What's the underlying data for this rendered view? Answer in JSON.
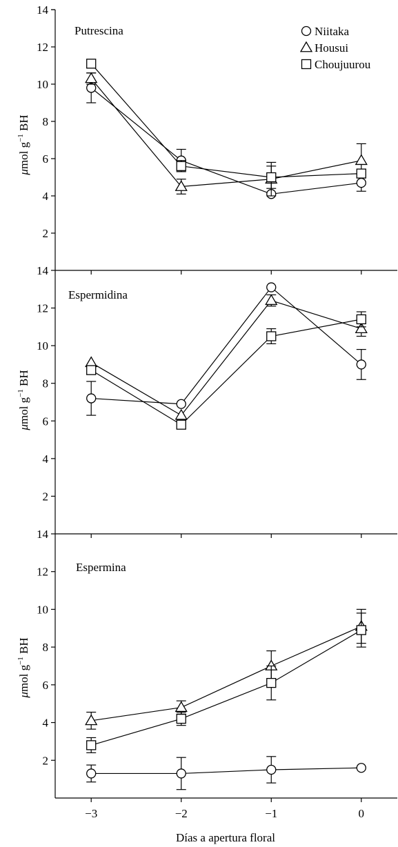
{
  "figure": {
    "xlabel": "Días a apertura floral"
  },
  "legend": {
    "placement": "top-right of first panel",
    "entries": [
      {
        "label": "Niitaka",
        "marker": "circle"
      },
      {
        "label": "Housui",
        "marker": "triangle"
      },
      {
        "label": "Choujuurou",
        "marker": "square"
      }
    ]
  },
  "chart_data": [
    {
      "type": "line",
      "title": "Putrescina",
      "ylabel": "μmol g⁻¹ BH",
      "ylabel_parts": {
        "mu": "μ",
        "main": "mol g",
        "sup": "−1",
        "suffix": " BH"
      },
      "xlim": [
        -3.4,
        0.4
      ],
      "ylim": [
        0,
        14
      ],
      "yticks": [
        2,
        4,
        6,
        8,
        10,
        12,
        14
      ],
      "ytick_labels": [
        "2",
        "4",
        "6",
        "8",
        "10",
        "12",
        "14"
      ],
      "x": [
        -3,
        -2,
        -1,
        0
      ],
      "series": [
        {
          "name": "Niitaka",
          "marker": "circle",
          "values": [
            9.8,
            5.9,
            4.1,
            4.7
          ],
          "errors": [
            0.8,
            0.6,
            0,
            0.45
          ]
        },
        {
          "name": "Housui",
          "marker": "triangle",
          "values": [
            10.3,
            4.5,
            4.9,
            5.9
          ],
          "errors": [
            0.3,
            0.4,
            0.9,
            0.9
          ]
        },
        {
          "name": "Choujuurou",
          "marker": "square",
          "values": [
            11.1,
            5.6,
            5.0,
            5.2
          ],
          "errors": [
            0,
            0.3,
            0.6,
            0
          ]
        }
      ]
    },
    {
      "type": "line",
      "title": "Espermidina",
      "ylabel": "μmol g⁻¹ BH",
      "ylabel_parts": {
        "mu": "μ",
        "main": "mol g",
        "sup": "−1",
        "suffix": " BH"
      },
      "xlim": [
        -3.4,
        0.4
      ],
      "ylim": [
        0,
        14
      ],
      "yticks": [
        2,
        4,
        6,
        8,
        10,
        12,
        14
      ],
      "ytick_labels": [
        "2",
        "4",
        "6",
        "8",
        "10",
        "12",
        "14"
      ],
      "x": [
        -3,
        -2,
        -1,
        0
      ],
      "series": [
        {
          "name": "Niitaka",
          "marker": "circle",
          "values": [
            7.2,
            6.9,
            13.1,
            9.0
          ],
          "errors": [
            0.9,
            0,
            0,
            0.8
          ]
        },
        {
          "name": "Housui",
          "marker": "triangle",
          "values": [
            9.1,
            6.3,
            12.4,
            10.9
          ],
          "errors": [
            0,
            0,
            0.3,
            0.4
          ]
        },
        {
          "name": "Choujuurou",
          "marker": "square",
          "values": [
            8.7,
            5.8,
            10.5,
            11.4
          ],
          "errors": [
            0,
            0,
            0.4,
            0.4
          ]
        }
      ]
    },
    {
      "type": "line",
      "title": "Espermina",
      "ylabel": "μmol g⁻¹ BH",
      "ylabel_parts": {
        "mu": "μ",
        "main": "mol g",
        "sup": "−1",
        "suffix": " BH"
      },
      "xlim": [
        -3.4,
        0.4
      ],
      "ylim": [
        0,
        14
      ],
      "yticks": [
        2,
        4,
        6,
        8,
        10,
        12,
        14
      ],
      "ytick_labels": [
        "2",
        "4",
        "6",
        "8",
        "10",
        "12",
        "14"
      ],
      "xticks": [
        -3,
        -2,
        -1,
        0
      ],
      "xtick_labels": [
        "−3",
        "−2",
        "−1",
        "0"
      ],
      "x": [
        -3,
        -2,
        -1,
        0
      ],
      "series": [
        {
          "name": "Niitaka",
          "marker": "circle",
          "values": [
            1.3,
            1.3,
            1.5,
            1.6
          ],
          "errors": [
            0.45,
            0.85,
            0.7,
            0
          ]
        },
        {
          "name": "Housui",
          "marker": "triangle",
          "values": [
            4.1,
            4.8,
            7.0,
            9.1
          ],
          "errors": [
            0.45,
            0.35,
            0.8,
            0.9
          ]
        },
        {
          "name": "Choujuurou",
          "marker": "square",
          "values": [
            2.8,
            4.2,
            6.1,
            8.9
          ],
          "errors": [
            0.4,
            0.35,
            0.9,
            0.9
          ]
        }
      ]
    }
  ]
}
